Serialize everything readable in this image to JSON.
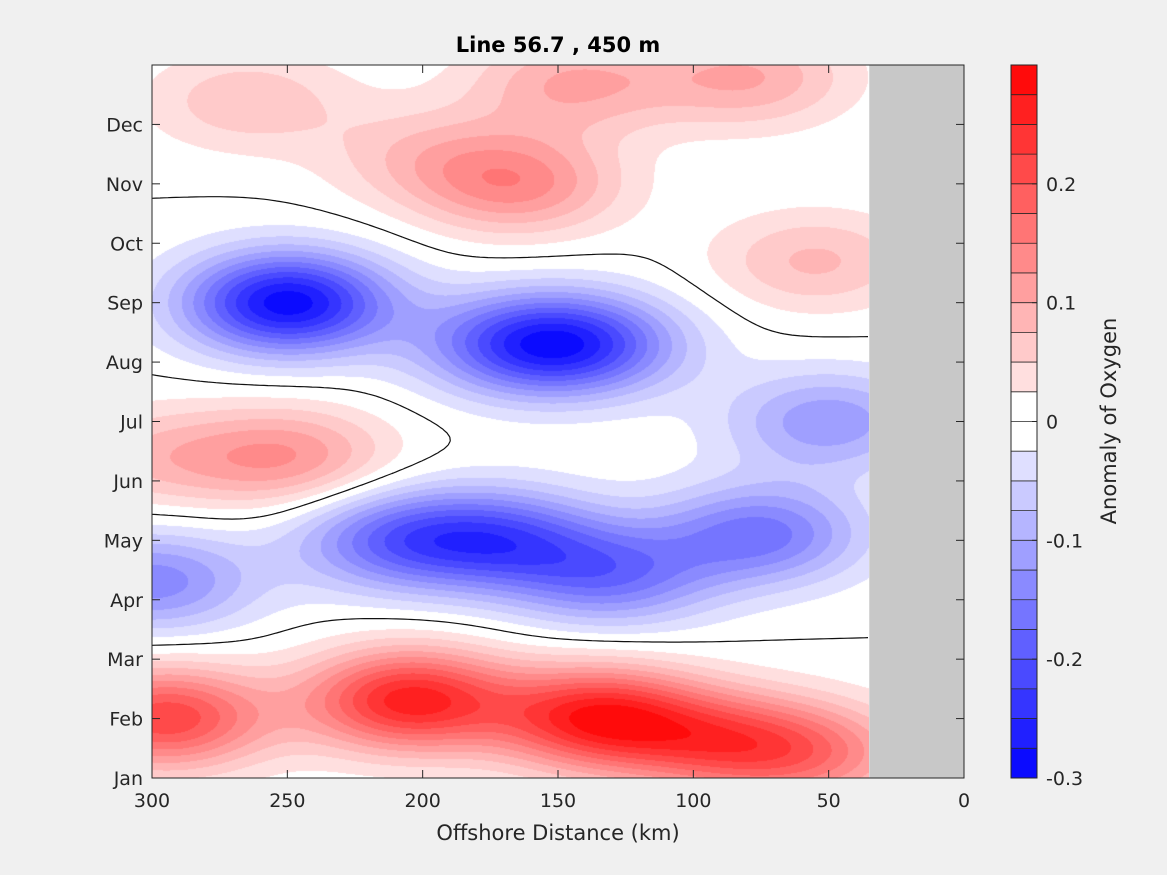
{
  "chart_data": {
    "type": "heatmap",
    "subtype": "filled-contour",
    "title": "Line 56.7 , 450 m",
    "xlabel": "Offshore Distance (km)",
    "ylabel": "",
    "xlim": [
      300,
      0
    ],
    "x_direction": "reversed",
    "x_ticks": [
      300,
      250,
      200,
      150,
      100,
      50,
      0
    ],
    "x_tick_labels": [
      "300",
      "250",
      "200",
      "150",
      "100",
      "50",
      "0"
    ],
    "y_ticks": [
      1,
      2,
      3,
      4,
      5,
      6,
      7,
      8,
      9,
      10,
      11,
      12
    ],
    "y_tick_labels": [
      "Jan",
      "Feb",
      "Mar",
      "Apr",
      "May",
      "Jun",
      "Jul",
      "Aug",
      "Sep",
      "Oct",
      "Nov",
      "Dec"
    ],
    "ylim": [
      1,
      13
    ],
    "no_data_region_x": [
      35,
      0
    ],
    "no_data_color": "#c8c8c8",
    "colorbar": {
      "label": "Anomaly of Oxygen",
      "clim": [
        -0.3,
        0.3
      ],
      "levels": 24,
      "tick_values": [
        -0.3,
        -0.2,
        -0.1,
        0,
        0.1,
        0.2
      ],
      "tick_labels": [
        "-0.3",
        "-0.2",
        "-0.1",
        "0",
        "0.1",
        "0.2"
      ],
      "low_color": "#0000ff",
      "mid_color": "#ffffff",
      "high_color": "#ff0000"
    },
    "features": [
      {
        "kind": "min",
        "x": 250,
        "month": 9.0,
        "value": -0.29
      },
      {
        "kind": "min",
        "x": 300,
        "month": 4.3,
        "value": -0.14
      },
      {
        "kind": "min",
        "x": 165,
        "month": 8.3,
        "value": -0.16
      },
      {
        "kind": "min",
        "x": 140,
        "month": 8.3,
        "value": -0.17
      },
      {
        "kind": "min",
        "x": 170,
        "month": 5.0,
        "value": -0.17
      },
      {
        "kind": "min",
        "x": 210,
        "month": 5.0,
        "value": -0.16
      },
      {
        "kind": "min",
        "x": 130,
        "month": 4.4,
        "value": -0.15
      },
      {
        "kind": "min",
        "x": 75,
        "month": 5.1,
        "value": -0.16
      },
      {
        "kind": "min",
        "x": 50,
        "month": 7.0,
        "value": -0.12
      },
      {
        "kind": "max",
        "x": 205,
        "month": 2.3,
        "value": 0.26
      },
      {
        "kind": "max",
        "x": 135,
        "month": 2.0,
        "value": 0.26
      },
      {
        "kind": "max",
        "x": 295,
        "month": 2.0,
        "value": 0.22
      },
      {
        "kind": "max",
        "x": 90,
        "month": 1.6,
        "value": 0.16
      },
      {
        "kind": "max",
        "x": 55,
        "month": 1.4,
        "value": 0.13
      },
      {
        "kind": "max",
        "x": 250,
        "month": 6.4,
        "value": 0.12
      },
      {
        "kind": "max",
        "x": 300,
        "month": 6.4,
        "value": 0.07
      },
      {
        "kind": "max",
        "x": 165,
        "month": 11.0,
        "value": 0.13
      },
      {
        "kind": "max",
        "x": 265,
        "month": 12.4,
        "value": 0.07
      },
      {
        "kind": "max",
        "x": 80,
        "month": 12.8,
        "value": 0.1
      },
      {
        "kind": "max",
        "x": 145,
        "month": 12.7,
        "value": 0.1
      },
      {
        "kind": "max",
        "x": 55,
        "month": 9.7,
        "value": 0.08
      },
      {
        "kind": "max",
        "x": 200,
        "month": 11.5,
        "value": 0.06
      }
    ]
  }
}
